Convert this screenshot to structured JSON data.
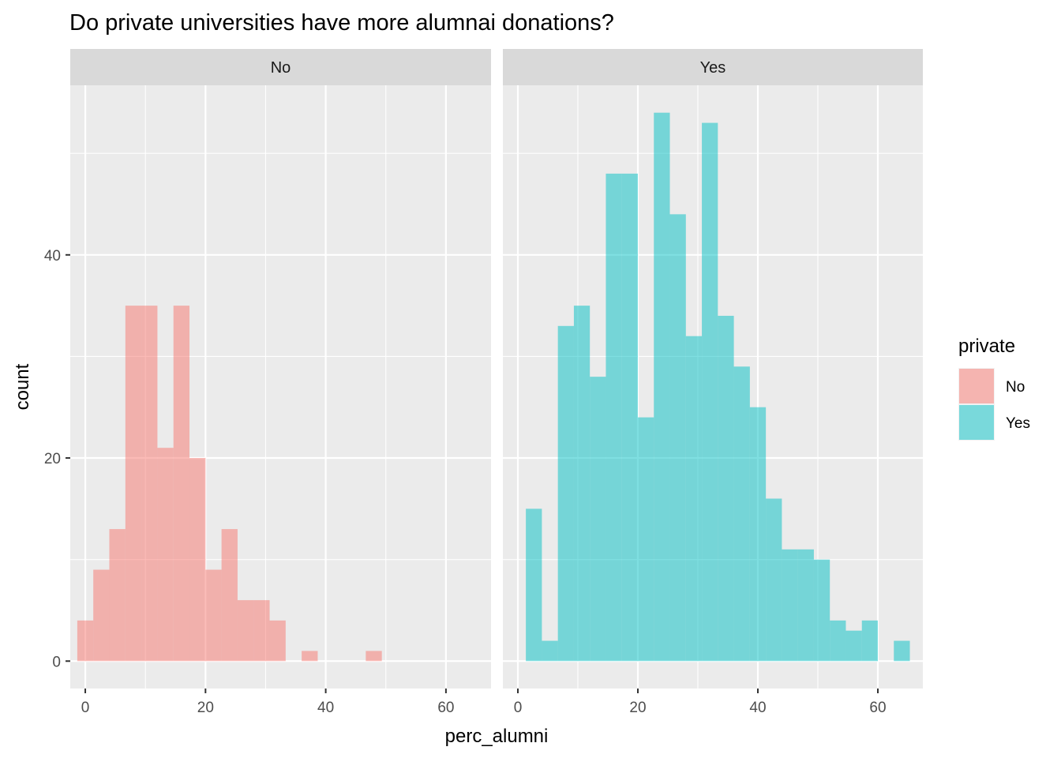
{
  "chart_data": {
    "type": "bar",
    "subtype": "faceted-histogram",
    "title": "Do private universities have more alumnai donations?",
    "xlabel": "perc_alumni",
    "ylabel": "count",
    "xlim": [
      -2.5,
      67.5
    ],
    "ylim": [
      -2.7,
      56.7
    ],
    "x_ticks": [
      0,
      20,
      40,
      60
    ],
    "y_ticks": [
      0,
      20,
      40
    ],
    "bin_width": 2.667,
    "grid": true,
    "legend": {
      "title": "private",
      "placement": "right",
      "entries": [
        {
          "label": "No",
          "color": "#F8766D"
        },
        {
          "label": "Yes",
          "color": "#00BFC4"
        }
      ]
    },
    "facets": [
      {
        "label": "No",
        "color": "#F8766D",
        "bins_x": [
          0,
          2.667,
          5.333,
          8,
          10.667,
          13.333,
          16,
          18.667,
          21.333,
          24,
          26.667,
          29.333,
          32,
          37.333,
          48
        ],
        "counts": [
          4,
          9,
          13,
          35,
          35,
          21,
          35,
          20,
          9,
          13,
          6,
          6,
          4,
          1,
          1
        ]
      },
      {
        "label": "Yes",
        "color": "#00BFC4",
        "bins_x": [
          2.667,
          5.333,
          8,
          10.667,
          13.333,
          16,
          18.667,
          21.333,
          24,
          26.667,
          29.333,
          32,
          34.667,
          37.333,
          40,
          42.667,
          45.333,
          48,
          50.667,
          53.333,
          56,
          58.667,
          64
        ],
        "counts": [
          15,
          2,
          33,
          35,
          28,
          48,
          48,
          24,
          54,
          44,
          32,
          53,
          34,
          29,
          25,
          16,
          11,
          11,
          10,
          4,
          3,
          4,
          2
        ]
      }
    ]
  }
}
